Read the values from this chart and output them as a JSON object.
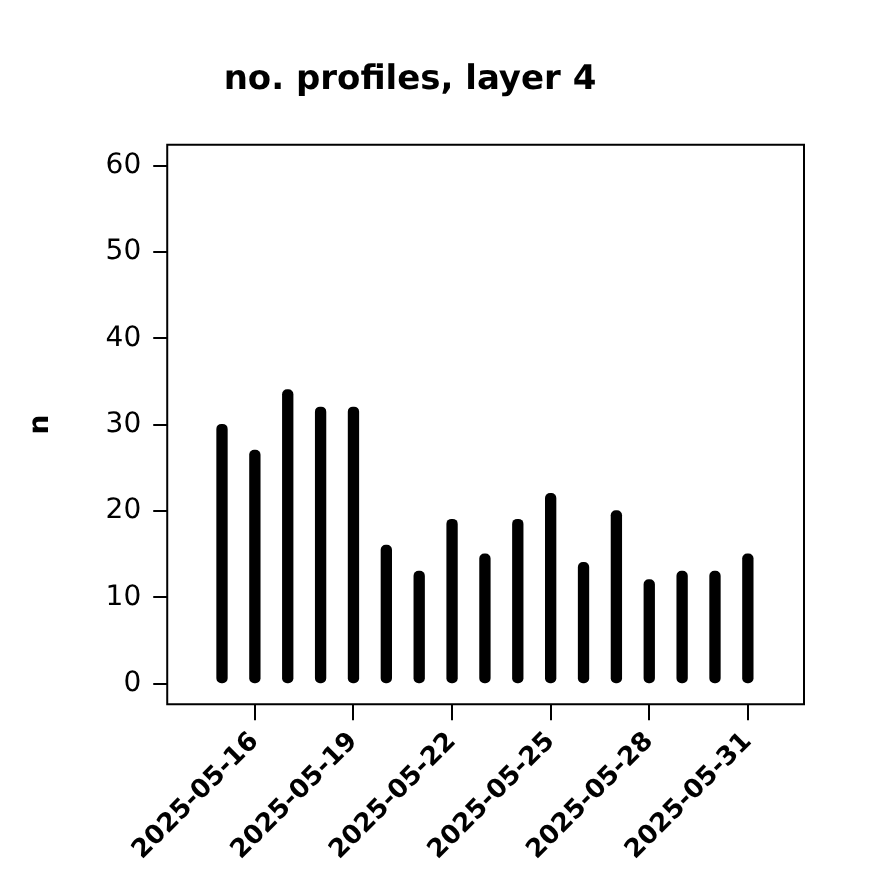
{
  "chart_data": {
    "type": "bar",
    "title": "no. profiles, layer 4",
    "ylabel": "n",
    "x": [
      "2025-05-15",
      "2025-05-16",
      "2025-05-17",
      "2025-05-18",
      "2025-05-19",
      "2025-05-20",
      "2025-05-21",
      "2025-05-22",
      "2025-05-23",
      "2025-05-24",
      "2025-05-25",
      "2025-05-26",
      "2025-05-27",
      "2025-05-28",
      "2025-05-29",
      "2025-05-30",
      "2025-05-31"
    ],
    "values": [
      30,
      27,
      34,
      32,
      32,
      16,
      13,
      19,
      15,
      19,
      22,
      14,
      20,
      12,
      13,
      13,
      15
    ],
    "color": "#000000",
    "xlim": [
      "2025-05-13T08:00",
      "2025-06-01T17:00"
    ],
    "xticks": [
      "2025-05-16",
      "2025-05-19",
      "2025-05-22",
      "2025-05-25",
      "2025-05-28",
      "2025-05-31"
    ],
    "ylim": [
      -2.4,
      62.4
    ],
    "yticks": [
      0,
      10,
      20,
      30,
      40,
      50,
      60
    ],
    "grid": false,
    "legend": false
  }
}
